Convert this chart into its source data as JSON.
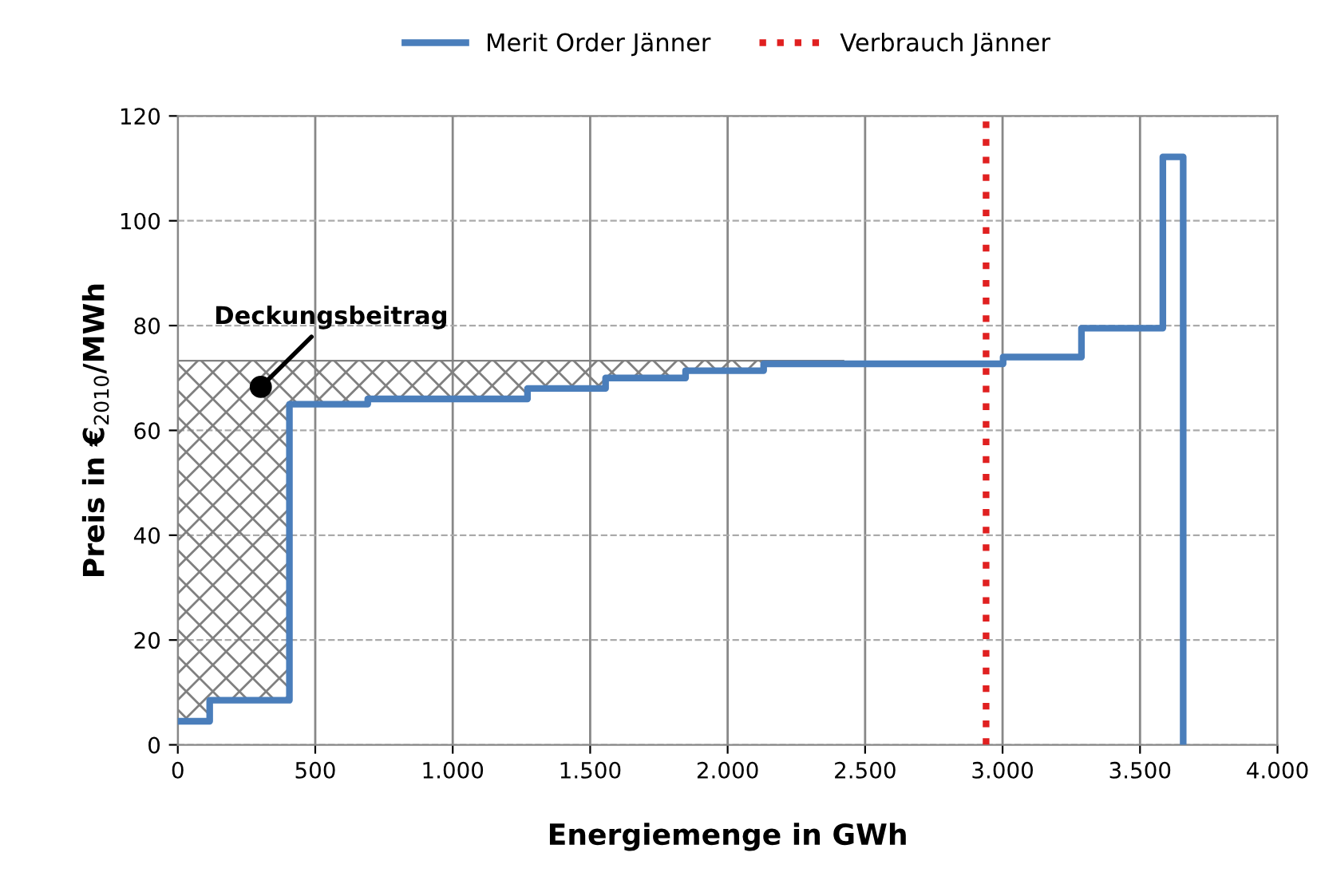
{
  "chart_data": {
    "type": "step",
    "xlabel": "Energiemenge in GWh",
    "ylabel": "Preis in €$_{2010}$/MWh",
    "xlim": [
      0,
      4000
    ],
    "xticks": [
      0,
      500,
      {
        "value": 1000,
        "label": "1.000"
      },
      {
        "value": 1500,
        "label": "1.500"
      },
      {
        "value": 2000,
        "label": "2.000"
      },
      {
        "value": 2500,
        "label": "2.500"
      },
      {
        "value": 3000,
        "label": "3.000"
      },
      {
        "value": 3500,
        "label": "3.500"
      },
      {
        "value": 4000,
        "label": "4.000"
      }
    ],
    "ylim": [
      0,
      120
    ],
    "yticks": [
      0,
      20,
      40,
      60,
      80,
      100,
      120
    ],
    "grid": true,
    "legend": "top",
    "series": [
      {
        "name": "Merit Order Jänner",
        "color": "#4a7ebb",
        "x": [
          0,
          116,
          406,
          691,
          1272,
          1556,
          1847,
          2131,
          2422,
          3002,
          3287,
          3583,
          3657
        ],
        "values": [
          4.5,
          8.5,
          65,
          66,
          68,
          70,
          71.4,
          72.7,
          72.7,
          74,
          79.5,
          112.2,
          0
        ]
      },
      {
        "type": "area",
        "color": "#808080",
        "x": [
          0,
          116,
          406,
          691,
          1272,
          1556,
          1847,
          2131,
          2422
        ],
        "values": [
          73.3,
          73.3,
          73.3,
          73.3,
          73.3,
          73.3,
          73.3,
          73.3,
          73.3
        ]
      }
    ],
    "ref_lines": [
      {
        "axis": "x",
        "value": 2940,
        "label": "Verbrauch Jänner",
        "color": "#e02020",
        "line_style": "dotted"
      }
    ],
    "annotations": [
      {
        "text": "Deckungsbeitrag",
        "x": 302,
        "y": 68.3
      }
    ]
  }
}
